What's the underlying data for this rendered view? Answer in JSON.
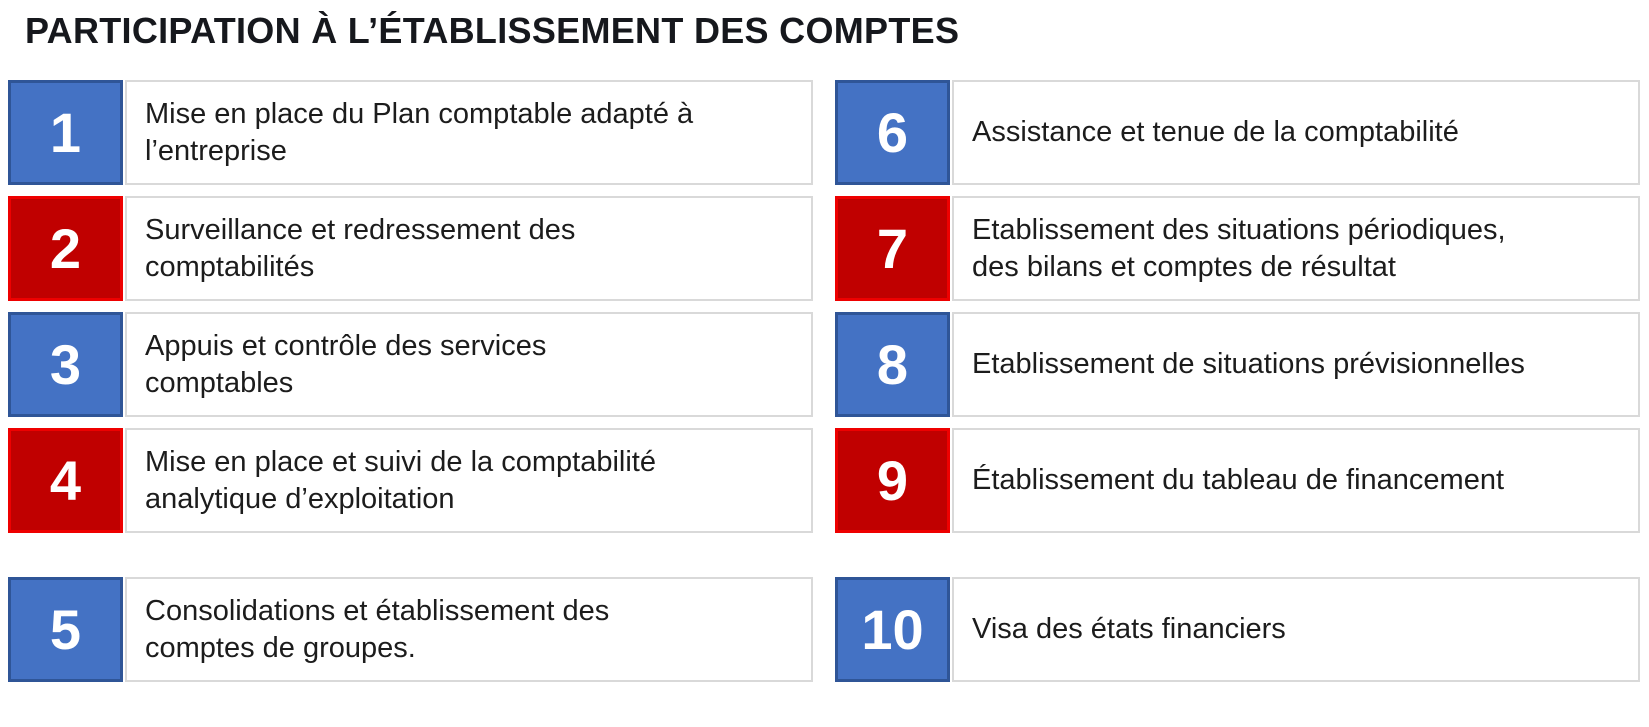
{
  "title": "PARTICIPATION À L’ÉTABLISSEMENT DES COMPTES",
  "colors": {
    "badge_blue_fill": "#4472C4",
    "badge_blue_border": "#2F5597",
    "badge_red_fill": "#C00000",
    "badge_red_border": "#EE0000",
    "text_box_border": "#D9D9D9",
    "body_text": "#1C1C1C",
    "title_text": "#16181D",
    "number_text": "#FFFFFF"
  },
  "items": [
    {
      "number": "1",
      "color": "blue",
      "label": "Mise en place du Plan comptable adapté à\nl’entreprise"
    },
    {
      "number": "2",
      "color": "red",
      "label": "Surveillance et redressement des\ncomptabilités"
    },
    {
      "number": "3",
      "color": "blue",
      "label": "Appuis et contrôle des services\ncomptables"
    },
    {
      "number": "4",
      "color": "red",
      "label": "Mise en place et suivi de la comptabilité\nanalytique d’exploitation"
    },
    {
      "number": "5",
      "color": "blue",
      "label": "Consolidations et établissement des\ncomptes de groupes."
    },
    {
      "number": "6",
      "color": "blue",
      "label": "Assistance et tenue de la comptabilité"
    },
    {
      "number": "7",
      "color": "red",
      "label": "Etablissement des situations périodiques,\ndes bilans et comptes de résultat"
    },
    {
      "number": "8",
      "color": "blue",
      "label": "Etablissement de situations prévisionnelles"
    },
    {
      "number": "9",
      "color": "red",
      "label": "Établissement du tableau de financement"
    },
    {
      "number": "10",
      "color": "blue",
      "label": "Visa des états financiers"
    }
  ]
}
